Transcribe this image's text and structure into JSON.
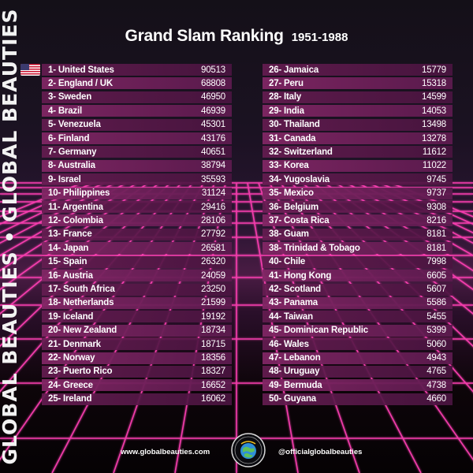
{
  "brand": {
    "side_text": "GLOBAL BEAUTIES • GLOBAL BEAUTIES",
    "logo_text": "GLOBAL BEAUTIES"
  },
  "header": {
    "title": "Grand Slam Ranking",
    "years": "1951-1988"
  },
  "flag_icon": "us-flag-icon",
  "ranking_left": [
    {
      "label": "1- United States",
      "value": "90513"
    },
    {
      "label": "2- England / UK",
      "value": "68808"
    },
    {
      "label": "3- Sweden",
      "value": "46950"
    },
    {
      "label": "4- Brazil",
      "value": "46939"
    },
    {
      "label": "5- Venezuela",
      "value": "45301"
    },
    {
      "label": "6- Finland",
      "value": "43176"
    },
    {
      "label": "7- Germany",
      "value": "40651"
    },
    {
      "label": "8- Australia",
      "value": "38794"
    },
    {
      "label": "9- Israel",
      "value": "35593"
    },
    {
      "label": "10- Philippines",
      "value": "31124"
    },
    {
      "label": "11- Argentina",
      "value": "29416"
    },
    {
      "label": "12- Colombia",
      "value": "28106"
    },
    {
      "label": "13- France",
      "value": "27792"
    },
    {
      "label": "14- Japan",
      "value": "26581"
    },
    {
      "label": "15- Spain",
      "value": "26320"
    },
    {
      "label": "16- Austria",
      "value": "24059"
    },
    {
      "label": "17- South Africa",
      "value": "23250"
    },
    {
      "label": "18- Netherlands",
      "value": "21599"
    },
    {
      "label": "19- Iceland",
      "value": "19192"
    },
    {
      "label": "20- New Zealand",
      "value": "18734"
    },
    {
      "label": "21- Denmark",
      "value": "18715"
    },
    {
      "label": "22- Norway",
      "value": "18356"
    },
    {
      "label": "23- Puerto Rico",
      "value": "18327"
    },
    {
      "label": "24- Greece",
      "value": "16652"
    },
    {
      "label": "25- Ireland",
      "value": "16062"
    }
  ],
  "ranking_right": [
    {
      "label": "26- Jamaica",
      "value": "15779"
    },
    {
      "label": "27- Peru",
      "value": "15318"
    },
    {
      "label": "28- Italy",
      "value": "14599"
    },
    {
      "label": "29- India",
      "value": "14053"
    },
    {
      "label": "30- Thailand",
      "value": "13498"
    },
    {
      "label": "31- Canada",
      "value": "13278"
    },
    {
      "label": "32- Switzerland",
      "value": "11612"
    },
    {
      "label": "33- Korea",
      "value": "11022"
    },
    {
      "label": "34- Yugoslavia",
      "value": "9745"
    },
    {
      "label": "35- Mexico",
      "value": "9737"
    },
    {
      "label": "36- Belgium",
      "value": "9308"
    },
    {
      "label": "37- Costa Rica",
      "value": "8216"
    },
    {
      "label": "38- Guam",
      "value": "8181"
    },
    {
      "label": "38- Trinidad & Tobago",
      "value": "8181"
    },
    {
      "label": "40- Chile",
      "value": "7998"
    },
    {
      "label": "41- Hong Kong",
      "value": "6605"
    },
    {
      "label": "42- Scotland",
      "value": "5607"
    },
    {
      "label": "43- Panama",
      "value": "5586"
    },
    {
      "label": "44- Taiwan",
      "value": "5455"
    },
    {
      "label": "45- Dominican Republic",
      "value": "5399"
    },
    {
      "label": "46- Wales",
      "value": "5060"
    },
    {
      "label": "47- Lebanon",
      "value": "4943"
    },
    {
      "label": "48- Uruguay",
      "value": "4765"
    },
    {
      "label": "49- Bermuda",
      "value": "4738"
    },
    {
      "label": "50- Guyana",
      "value": "4660"
    }
  ],
  "footer": {
    "website": "www.globalbeauties.com",
    "handle": "@officialglobalbeauties"
  },
  "colors": {
    "neon": "#ff3fb4",
    "row": "#641c50",
    "row_alt": "#802664"
  }
}
